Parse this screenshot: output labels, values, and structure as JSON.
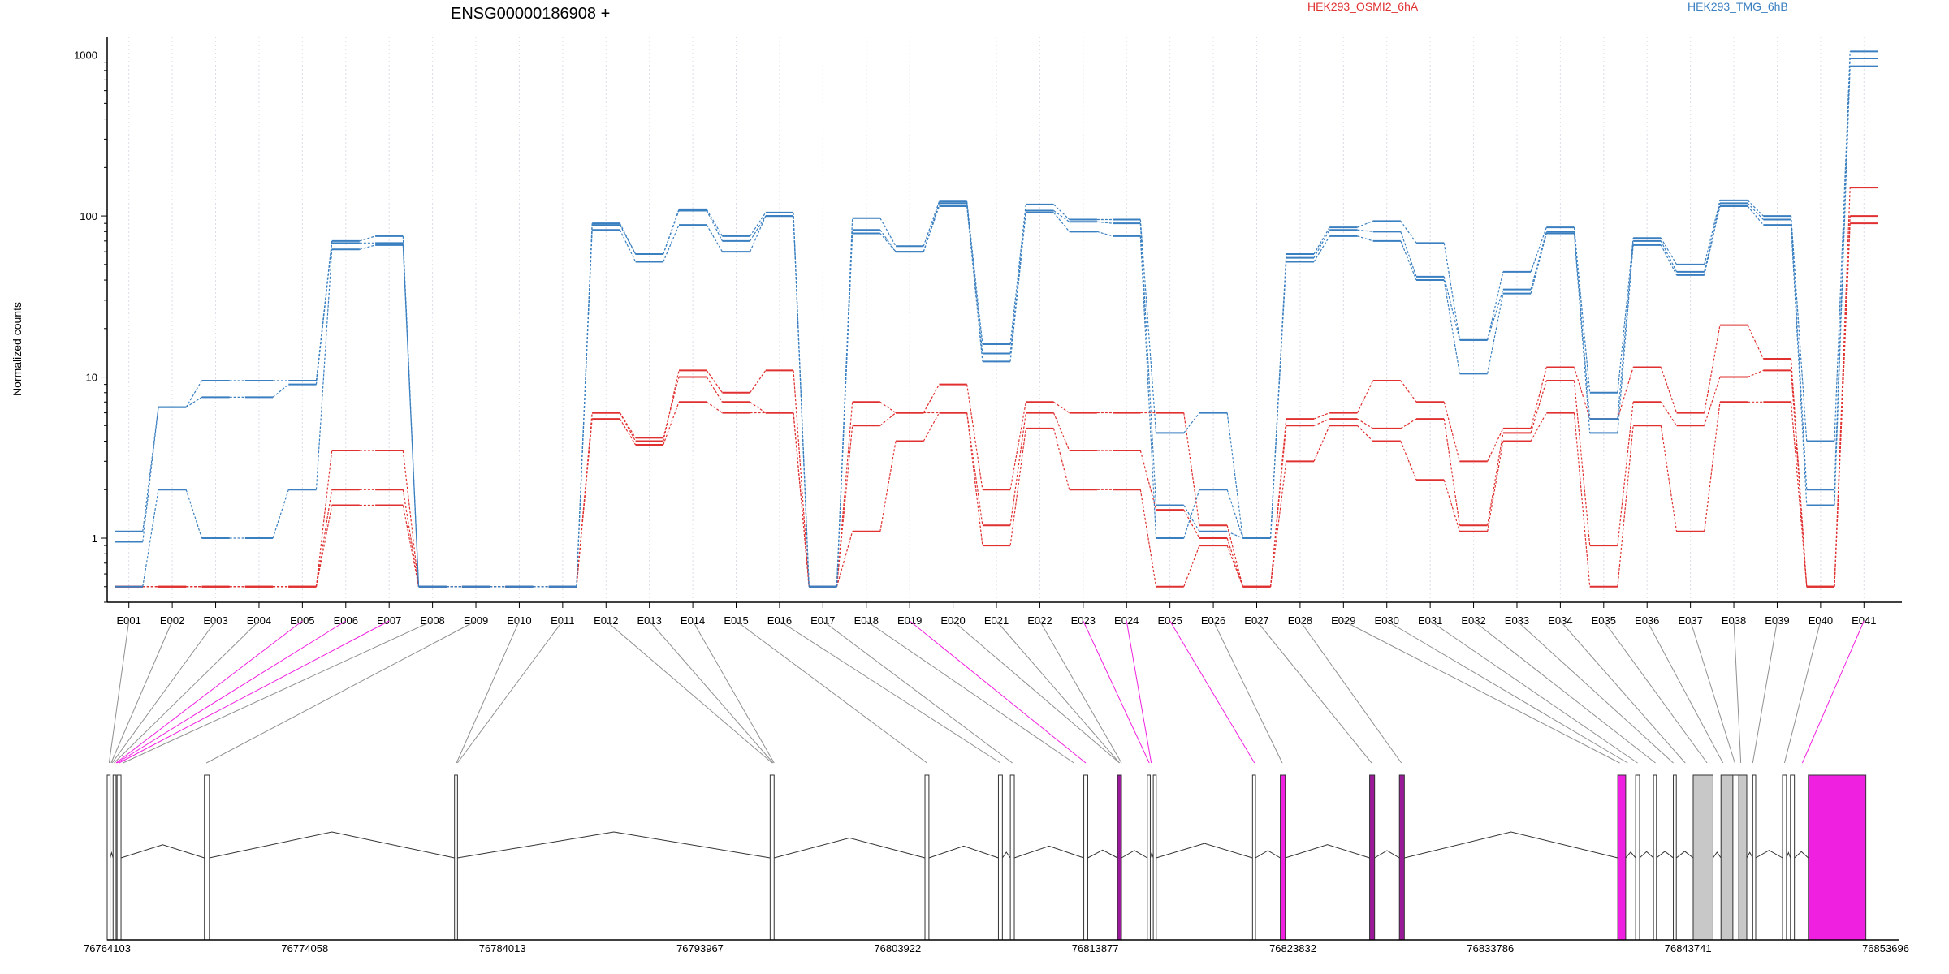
{
  "chart_data": {
    "type": "line",
    "title": "ENSG00000186908 +",
    "ylabel": "Normalized counts",
    "xlabel": "",
    "yscale": "log",
    "ylim": [
      0.4,
      1300
    ],
    "yticks": [
      1,
      10,
      100,
      1000
    ],
    "ytick_labels": [
      "1",
      "10",
      "100",
      "1000"
    ],
    "grid": "vertical dotted",
    "legend_position": "top",
    "colors": {
      "condition_a": "#e03030",
      "condition_b": "#3a7fc0",
      "alt_exon": "#f020e0",
      "gray_exon": "#c8c8c8"
    },
    "categories": [
      "E001",
      "E002",
      "E003",
      "E004",
      "E005",
      "E006",
      "E007",
      "E008",
      "E009",
      "E010",
      "E011",
      "E012",
      "E013",
      "E014",
      "E015",
      "E016",
      "E017",
      "E018",
      "E019",
      "E020",
      "E021",
      "E022",
      "E023",
      "E024",
      "E025",
      "E026",
      "E027",
      "E028",
      "E029",
      "E030",
      "E031",
      "E032",
      "E033",
      "E034",
      "E035",
      "E036",
      "E037",
      "E038",
      "E039",
      "E040",
      "E041"
    ],
    "legend": [
      {
        "label": "HEK293_OSMI2_6hA",
        "color": "#e03030"
      },
      {
        "label": "HEK293_TMG_6hB",
        "color": "#3a7fc0"
      }
    ],
    "series": [
      {
        "group": "HEK293_OSMI2_6hA",
        "color": "#e03030",
        "values": [
          0.5,
          0.5,
          0.5,
          0.5,
          0.5,
          3.5,
          3.5,
          0.5,
          0.5,
          0.5,
          0.5,
          6.0,
          4.0,
          11.0,
          8.0,
          11.0,
          0.5,
          7.0,
          6.0,
          9.0,
          2.0,
          7.0,
          6.0,
          6.0,
          6.0,
          1.2,
          0.5,
          5.5,
          6.0,
          9.5,
          7.0,
          3.0,
          4.8,
          11.5,
          5.5,
          11.5,
          6.0,
          21.0,
          13.0,
          0.5,
          150
        ]
      },
      {
        "group": "HEK293_OSMI2_6hA",
        "color": "#e03030",
        "values": [
          0.5,
          0.5,
          0.5,
          0.5,
          0.5,
          2.0,
          2.0,
          0.5,
          0.5,
          0.5,
          0.5,
          6.0,
          4.2,
          10.0,
          7.0,
          6.0,
          0.5,
          5.0,
          6.0,
          6.0,
          1.2,
          6.0,
          3.5,
          3.5,
          1.5,
          1.0,
          0.5,
          5.0,
          5.5,
          4.8,
          5.5,
          1.2,
          4.5,
          9.5,
          0.9,
          7.0,
          5.0,
          10.0,
          11.0,
          0.5,
          100
        ]
      },
      {
        "group": "HEK293_OSMI2_6hA",
        "color": "#e03030",
        "values": [
          0.5,
          0.5,
          0.5,
          0.5,
          0.5,
          1.6,
          1.6,
          0.5,
          0.5,
          0.5,
          0.5,
          5.5,
          3.8,
          7.0,
          6.0,
          6.0,
          0.5,
          1.1,
          4.0,
          6.0,
          0.9,
          4.8,
          2.0,
          2.0,
          0.5,
          0.9,
          0.5,
          3.0,
          5.0,
          4.0,
          2.3,
          1.1,
          4.0,
          6.0,
          0.5,
          5.0,
          1.1,
          7.0,
          7.0,
          0.5,
          90
        ]
      },
      {
        "group": "HEK293_TMG_6hB",
        "color": "#3a7fc0",
        "values": [
          1.1,
          6.5,
          9.5,
          9.5,
          9.5,
          70,
          75,
          0.5,
          0.5,
          0.5,
          0.5,
          90,
          58,
          110,
          75,
          105,
          0.5,
          97,
          65,
          123,
          16,
          118,
          95,
          95,
          4.5,
          6.0,
          1.0,
          58,
          85,
          93,
          68,
          17,
          45,
          85,
          8.0,
          73,
          50,
          125,
          100,
          4.0,
          1050
        ]
      },
      {
        "group": "HEK293_TMG_6hB",
        "color": "#3a7fc0",
        "values": [
          0.95,
          6.5,
          7.5,
          7.5,
          9.0,
          68,
          68,
          0.5,
          0.5,
          0.5,
          0.5,
          88,
          58,
          108,
          70,
          100,
          0.5,
          82,
          60,
          120,
          14,
          108,
          92,
          90,
          1.6,
          1.1,
          1.0,
          55,
          82,
          80,
          42,
          17,
          35,
          80,
          5.5,
          70,
          45,
          120,
          95,
          2.0,
          950
        ]
      },
      {
        "group": "HEK293_TMG_6hB",
        "color": "#3a7fc0",
        "values": [
          0.5,
          2.0,
          1.0,
          1.0,
          2.0,
          62,
          66,
          0.5,
          0.5,
          0.5,
          0.5,
          82,
          52,
          88,
          60,
          100,
          0.5,
          78,
          60,
          115,
          12.5,
          105,
          80,
          75,
          1.0,
          2.0,
          1.0,
          52,
          75,
          70,
          40,
          10.5,
          33,
          78,
          4.5,
          66,
          43,
          115,
          88,
          1.6,
          850
        ]
      }
    ],
    "gene_model": {
      "coordinate_labels": [
        "76764103",
        "76774058",
        "76784013",
        "76793967",
        "76803922",
        "76813877",
        "76823832",
        "76833786",
        "76843741",
        "76853696"
      ],
      "coord_min": 76764103,
      "coord_max": 76853696,
      "exon_starts": [
        76764103,
        76764400,
        76764600,
        76769000,
        76781600,
        76797500,
        76805300,
        76809000,
        76809600,
        76813300,
        76815000,
        76816500,
        76816800,
        76821800,
        76823200,
        76827700,
        76829200,
        76840200,
        76841100,
        76842000,
        76843000,
        76844000,
        76845400,
        76846000,
        76846300,
        76847000,
        76848500,
        76848900,
        76849800
      ],
      "exon_ends": [
        76764250,
        76764550,
        76764800,
        76769250,
        76781750,
        76797700,
        76805500,
        76809200,
        76809800,
        76813500,
        76815200,
        76816650,
        76816950,
        76821950,
        76823450,
        76827950,
        76829450,
        76840600,
        76841300,
        76842150,
        76843150,
        76845000,
        76846300,
        76846300,
        76846700,
        76847150,
        76848700,
        76849100,
        76852700
      ],
      "exon_fill": [
        "#ffffff",
        "#ffffff",
        "#ffffff",
        "#ffffff",
        "#ffffff",
        "#ffffff",
        "#ffffff",
        "#ffffff",
        "#ffffff",
        "#ffffff",
        "#9a1a9a",
        "#ffffff",
        "#ffffff",
        "#ffffff",
        "#f020e0",
        "#9a1a9a",
        "#9a1a9a",
        "#f020e0",
        "#ffffff",
        "#ffffff",
        "#ffffff",
        "#c8c8c8",
        "#c8c8c8",
        "#ffffff",
        "#c8c8c8",
        "#ffffff",
        "#ffffff",
        "#ffffff",
        "#f020e0"
      ],
      "bin_to_gene_x": [
        76764200,
        76764300,
        76764350,
        76764450,
        76764550,
        76764600,
        76764700,
        76764900,
        76769100,
        76781700,
        76781750,
        76797600,
        76797650,
        76797700,
        76805400,
        76809100,
        76809700,
        76812800,
        76813400,
        76815100,
        76815100,
        76815200,
        76816600,
        76816700,
        76821900,
        76823300,
        76827800,
        76829300,
        76840300,
        76840700,
        76841200,
        76842100,
        76843000,
        76843600,
        76844700,
        76845500,
        76846100,
        76846400,
        76847000,
        76848600,
        76849500
      ],
      "alt_links": [
        false,
        false,
        false,
        false,
        true,
        true,
        true,
        false,
        false,
        false,
        false,
        false,
        false,
        false,
        false,
        false,
        false,
        false,
        true,
        false,
        false,
        false,
        true,
        true,
        true,
        false,
        false,
        false,
        false,
        false,
        false,
        false,
        false,
        false,
        false,
        false,
        false,
        false,
        false,
        false,
        true
      ]
    }
  }
}
